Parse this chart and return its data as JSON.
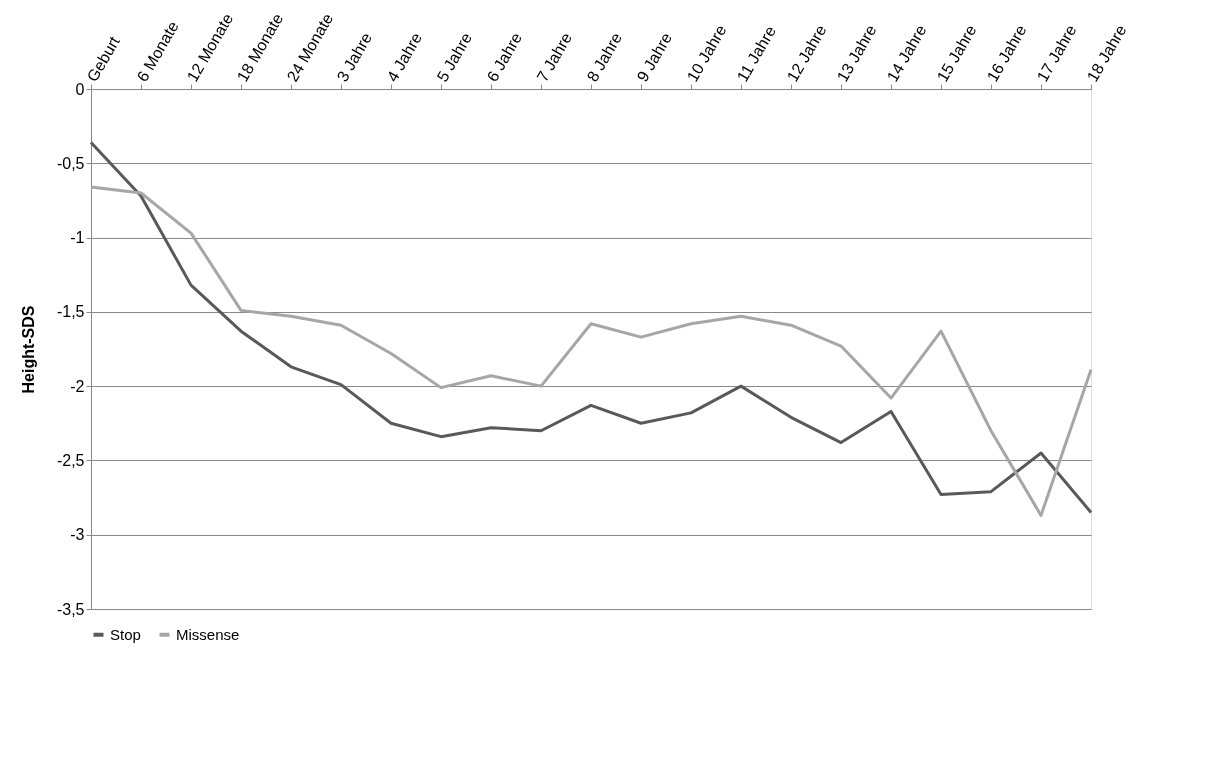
{
  "chart_data": {
    "type": "line",
    "ylabel": "Height-SDS",
    "categories": [
      "Geburt",
      "6 Monate",
      "12 Monate",
      "18 Monate",
      "24 Monate",
      "3 Jahre",
      "4 Jahre",
      "5 Jahre",
      "6 Jahre",
      "7 Jahre",
      "8 Jahre",
      "9 Jahre",
      "10 Jahre",
      "11 Jahre",
      "12 Jahre",
      "13 Jahre",
      "14 Jahre",
      "15 Jahre",
      "16 Jahre",
      "17 Jahre",
      "18 Jahre"
    ],
    "series": [
      {
        "name": "Stop",
        "color": "#595959",
        "values": [
          -0.36,
          -0.72,
          -1.32,
          -1.63,
          -1.87,
          -1.99,
          -2.25,
          -2.34,
          -2.28,
          -2.3,
          -2.13,
          -2.25,
          -2.18,
          -2.0,
          -2.21,
          -2.38,
          -2.17,
          -2.73,
          -2.71,
          -2.45,
          -2.85
        ]
      },
      {
        "name": "Missense",
        "color": "#a6a6a6",
        "values": [
          -0.66,
          -0.7,
          -0.97,
          -1.49,
          -1.53,
          -1.59,
          -1.78,
          -2.01,
          -1.93,
          -2.0,
          -1.58,
          -1.67,
          -1.58,
          -1.53,
          -1.59,
          -1.73,
          -2.08,
          -1.63,
          -2.3,
          -2.87,
          -1.89
        ]
      }
    ],
    "ylim": [
      -3.5,
      0
    ],
    "yticks": [
      0,
      {
        "value": -0.5,
        "label": "-0,5"
      },
      -1,
      {
        "value": -1.5,
        "label": "-1,5"
      },
      -2,
      {
        "value": -2.5,
        "label": "-2,5"
      },
      -3,
      {
        "value": -3.5,
        "label": "-3,5"
      }
    ],
    "grid": "y",
    "legend": "bottom",
    "marker": "none",
    "line_style": "solid"
  }
}
